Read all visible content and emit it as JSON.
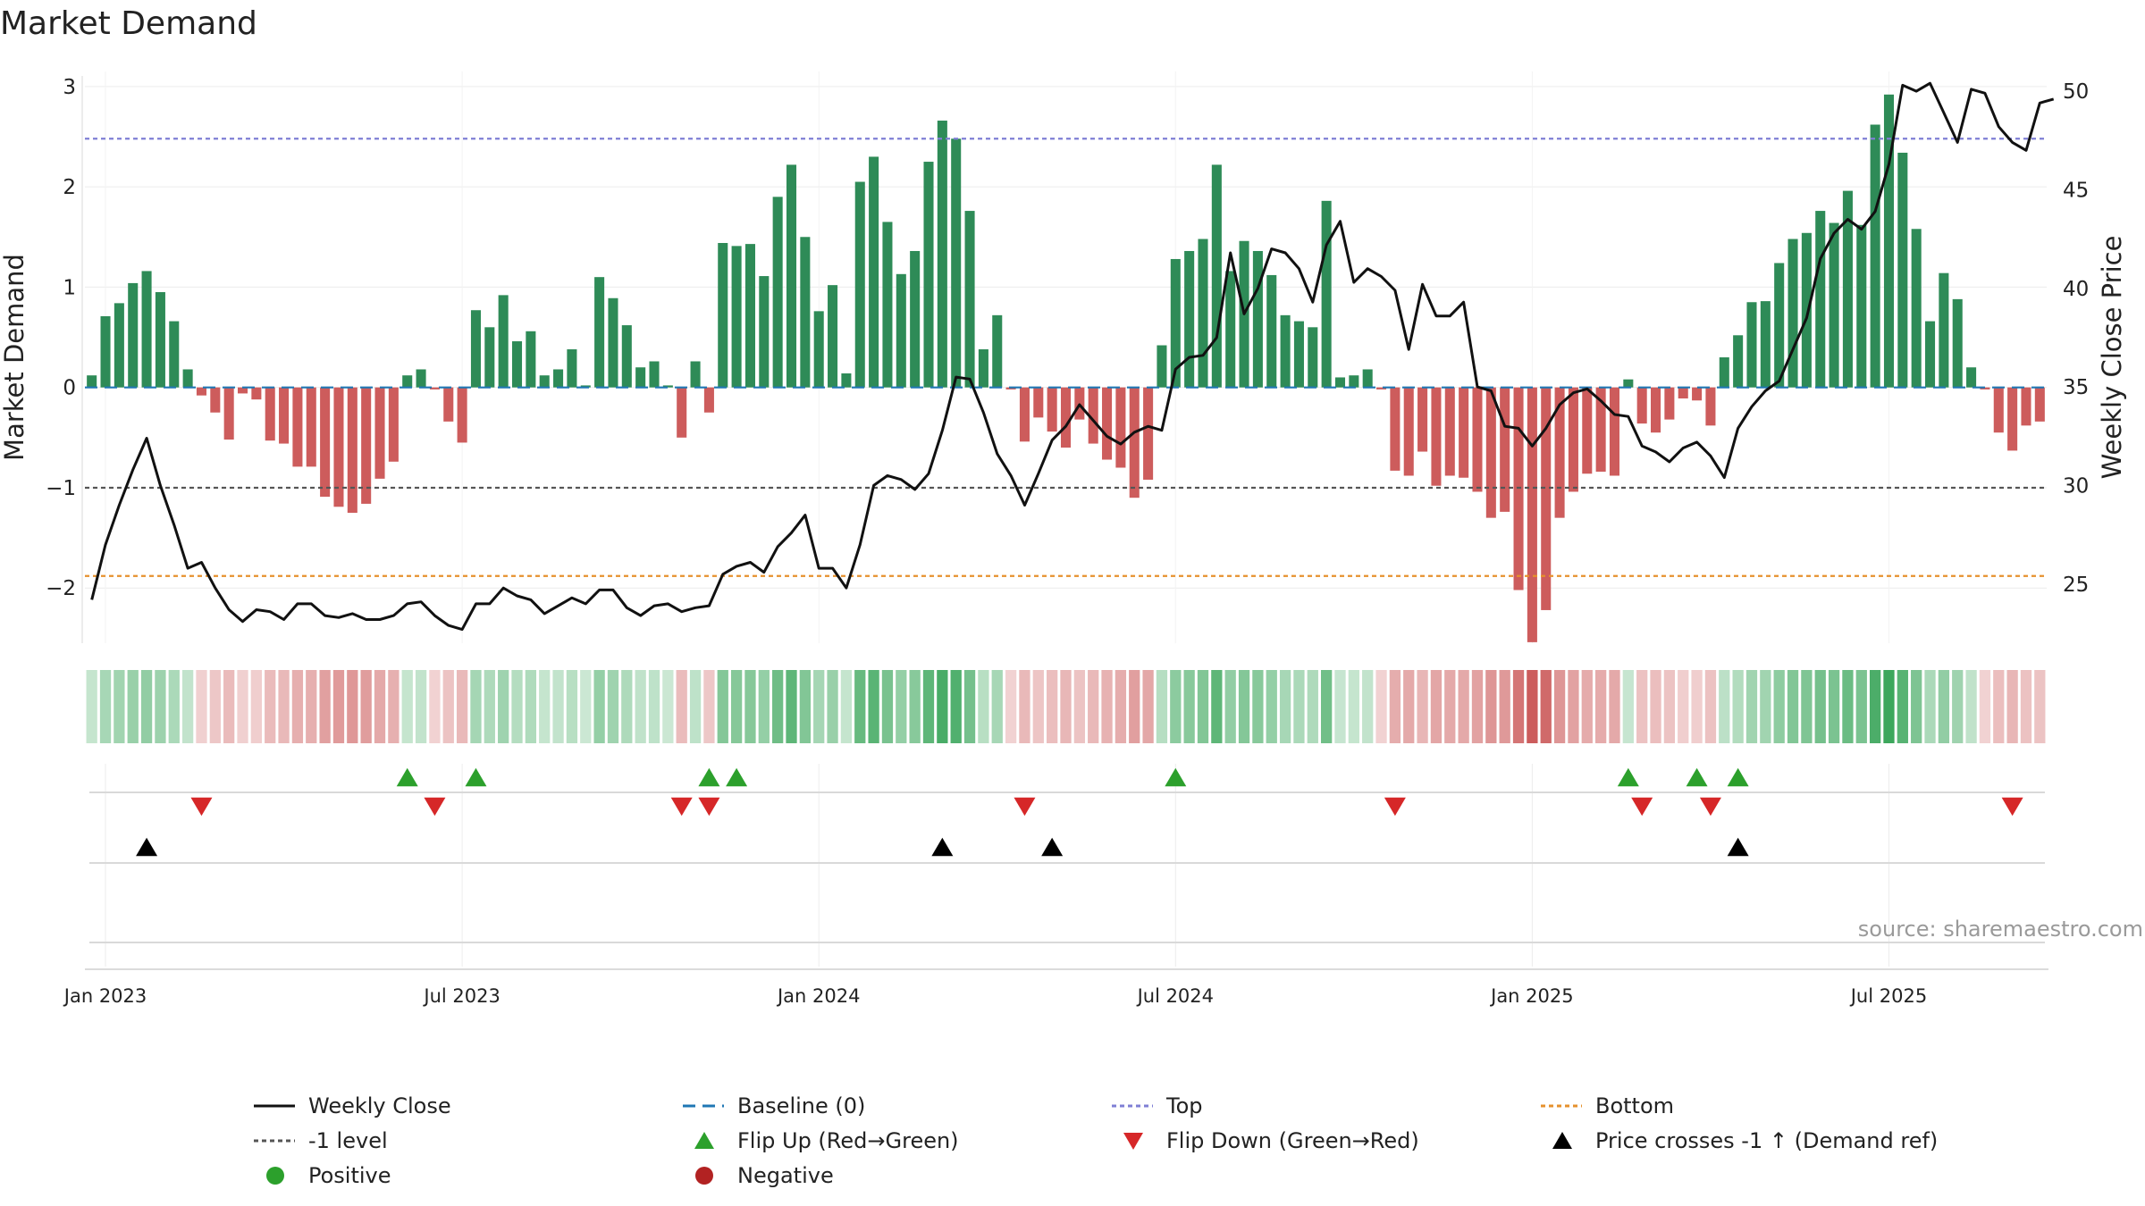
{
  "chart_data": {
    "type": "bar",
    "title": "Market Demand",
    "ylabel_left": "Market Demand",
    "ylabel_right": "Weekly Close Price",
    "source": "source: sharemaestro.com",
    "left_axis": {
      "ylim": [
        -2.55,
        3.15
      ],
      "ticks": [
        3,
        2,
        1,
        0,
        -1,
        -2
      ],
      "tick_labels": [
        "3",
        "2",
        "1",
        "0",
        "−1",
        "−2"
      ]
    },
    "right_axis": {
      "ylim": [
        22,
        51
      ],
      "ticks": [
        50,
        45,
        40,
        35,
        30,
        25
      ],
      "tick_labels": [
        "50",
        "45",
        "40",
        "35",
        "30",
        "25"
      ]
    },
    "x_ticks": [
      {
        "label": "Jan 2023",
        "week": 1.5
      },
      {
        "label": "Jul 2023",
        "week": 27.5
      },
      {
        "label": "Jan 2024",
        "week": 53.5
      },
      {
        "label": "Jul 2024",
        "week": 79.5
      },
      {
        "label": "Jan 2025",
        "week": 105.5
      },
      {
        "label": "Jul 2025",
        "week": 131.5
      }
    ],
    "reference_lines": [
      {
        "name": "Baseline (0)",
        "value": 0,
        "color": "#1f77b4",
        "style": "dashed"
      },
      {
        "name": "Top",
        "value": 2.48,
        "color": "#7f7fd5",
        "style": "dotted"
      },
      {
        "name": "-1 level",
        "value": -1,
        "color": "#555555",
        "style": "dotted"
      },
      {
        "name": "Bottom",
        "value": -1.88,
        "color": "#e6912d",
        "style": "dotted"
      }
    ],
    "series": [
      {
        "name": "Market Demand",
        "type": "bar",
        "values": [
          0.12,
          0.71,
          0.84,
          1.04,
          1.16,
          0.95,
          0.66,
          0.18,
          -0.08,
          -0.25,
          -0.52,
          -0.06,
          -0.12,
          -0.53,
          -0.56,
          -0.79,
          -0.79,
          -1.09,
          -1.19,
          -1.25,
          -1.16,
          -0.91,
          -0.74,
          0.12,
          0.18,
          -0.02,
          -0.34,
          -0.55,
          0.77,
          0.6,
          0.92,
          0.46,
          0.56,
          0.12,
          0.18,
          0.38,
          0.02,
          1.1,
          0.89,
          0.62,
          0.2,
          0.26,
          0.02,
          -0.5,
          0.26,
          -0.25,
          1.44,
          1.41,
          1.43,
          1.11,
          1.9,
          2.22,
          1.5,
          0.76,
          1.02,
          0.14,
          2.05,
          2.3,
          1.65,
          1.13,
          1.36,
          2.25,
          2.66,
          2.48,
          1.76,
          0.38,
          0.72,
          -0.02,
          -0.54,
          -0.3,
          -0.44,
          -0.6,
          -0.32,
          -0.56,
          -0.72,
          -0.8,
          -1.1,
          -0.92,
          0.42,
          1.28,
          1.36,
          1.48,
          2.22,
          1.16,
          1.46,
          1.36,
          1.12,
          0.72,
          0.66,
          0.6,
          1.86,
          0.1,
          0.12,
          0.18,
          -0.02,
          -0.83,
          -0.88,
          -0.64,
          -0.98,
          -0.88,
          -0.9,
          -1.04,
          -1.3,
          -1.24,
          -2.02,
          -2.54,
          -2.22,
          -1.3,
          -1.04,
          -0.86,
          -0.84,
          -0.88,
          0.08,
          -0.36,
          -0.45,
          -0.32,
          -0.11,
          -0.13,
          -0.38,
          0.3,
          0.52,
          0.85,
          0.86,
          1.24,
          1.48,
          1.54,
          1.76,
          1.64,
          1.96,
          1.62,
          2.62,
          2.92,
          2.34,
          1.58,
          0.66,
          1.14,
          0.88,
          0.2,
          -0.02,
          -0.45,
          -0.63,
          -0.38,
          -0.34
        ]
      },
      {
        "name": "Weekly Close",
        "type": "line",
        "axis": "right",
        "values": [
          24.2,
          27.0,
          29.0,
          30.8,
          32.4,
          30.0,
          28.0,
          25.8,
          26.1,
          24.8,
          23.7,
          23.1,
          23.7,
          23.6,
          23.2,
          24.0,
          24.0,
          23.4,
          23.3,
          23.5,
          23.2,
          23.2,
          23.4,
          24.0,
          24.1,
          23.4,
          22.9,
          22.7,
          24.0,
          24.0,
          24.8,
          24.4,
          24.2,
          23.5,
          23.9,
          24.3,
          24.0,
          24.7,
          24.7,
          23.8,
          23.4,
          23.9,
          24.0,
          23.6,
          23.8,
          23.9,
          25.5,
          25.9,
          26.1,
          25.6,
          26.9,
          27.6,
          28.5,
          25.8,
          25.8,
          24.8,
          27.0,
          30.0,
          30.5,
          30.3,
          29.8,
          30.6,
          32.8,
          35.5,
          35.4,
          33.7,
          31.6,
          30.5,
          29.0,
          30.6,
          32.3,
          33.0,
          34.1,
          33.3,
          32.5,
          32.1,
          32.7,
          33.0,
          32.8,
          35.9,
          36.5,
          36.6,
          37.5,
          41.8,
          38.7,
          40.0,
          42.0,
          41.8,
          41.0,
          39.3,
          42.2,
          43.4,
          40.3,
          41.0,
          40.6,
          39.9,
          36.9,
          40.2,
          38.6,
          38.6,
          39.3,
          35.0,
          34.8,
          33.0,
          32.9,
          32.0,
          32.9,
          34.1,
          34.7,
          34.9,
          34.3,
          33.6,
          33.5,
          32.0,
          31.7,
          31.2,
          31.9,
          32.2,
          31.5,
          30.4,
          32.9,
          34.0,
          34.8,
          35.3,
          36.9,
          38.5,
          41.5,
          42.8,
          43.5,
          43.0,
          43.9,
          46.3,
          50.3,
          50.0,
          50.4,
          48.9,
          47.4,
          50.1,
          49.9,
          48.2,
          47.4,
          47.0,
          49.4,
          49.6
        ]
      }
    ],
    "flip_up_weeks": [
      23,
      28,
      45,
      47,
      79,
      112,
      117,
      120
    ],
    "flip_down_weeks": [
      8,
      25,
      43,
      45,
      68,
      95,
      113,
      118,
      140
    ],
    "price_cross_weeks": [
      4,
      62,
      70,
      120
    ],
    "legend": [
      {
        "label": "Weekly Close",
        "type": "line-solid",
        "color": "#111111"
      },
      {
        "label": "Baseline (0)",
        "type": "line-dashed",
        "color": "#1f77b4"
      },
      {
        "label": "Top",
        "type": "line-dotted",
        "color": "#7f7fd5"
      },
      {
        "label": "Bottom",
        "type": "line-dotted",
        "color": "#e6912d"
      },
      {
        "label": "-1 level",
        "type": "line-dotted",
        "color": "#555555"
      },
      {
        "label": "Flip Up (Red→Green)",
        "type": "triangle-up",
        "color": "#2ca02c"
      },
      {
        "label": "Flip Down (Green→Red)",
        "type": "triangle-down",
        "color": "#d62728"
      },
      {
        "label": "Price crosses -1 ↑ (Demand ref)",
        "type": "triangle-up",
        "color": "#000000"
      },
      {
        "label": "Positive",
        "type": "circle",
        "color": "#2ca02c"
      },
      {
        "label": "Negative",
        "type": "circle",
        "color": "#b22222"
      }
    ],
    "colors": {
      "positive_bar": "#2e8b57",
      "negative_bar": "#cd5c5c",
      "price_line": "#111111"
    }
  }
}
